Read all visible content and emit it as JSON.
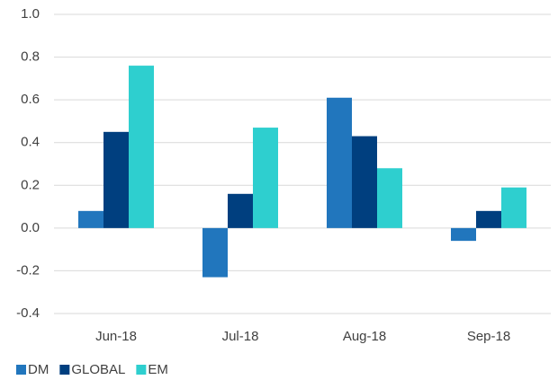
{
  "chart_data": {
    "type": "bar",
    "categories": [
      "Jun-18",
      "Jul-18",
      "Aug-18",
      "Sep-18"
    ],
    "series": [
      {
        "name": "DM",
        "color": "#2176bd",
        "values": [
          0.08,
          -0.23,
          0.61,
          -0.06
        ]
      },
      {
        "name": "GLOBAL",
        "color": "#003f7f",
        "values": [
          0.45,
          0.16,
          0.43,
          0.08
        ]
      },
      {
        "name": "EM",
        "color": "#2ecfcf",
        "values": [
          0.76,
          0.47,
          0.28,
          0.19
        ]
      }
    ],
    "ylim": [
      -0.4,
      1.0
    ],
    "yticks": [
      {
        "value": -0.4,
        "label": "-0.4"
      },
      -0.2,
      {
        "value": 0,
        "label": "0.0"
      },
      0.2,
      0.4,
      0.6,
      0.8,
      {
        "value": 1.0,
        "label": "1.0"
      }
    ],
    "grid": true,
    "legend": "bottom-left"
  }
}
